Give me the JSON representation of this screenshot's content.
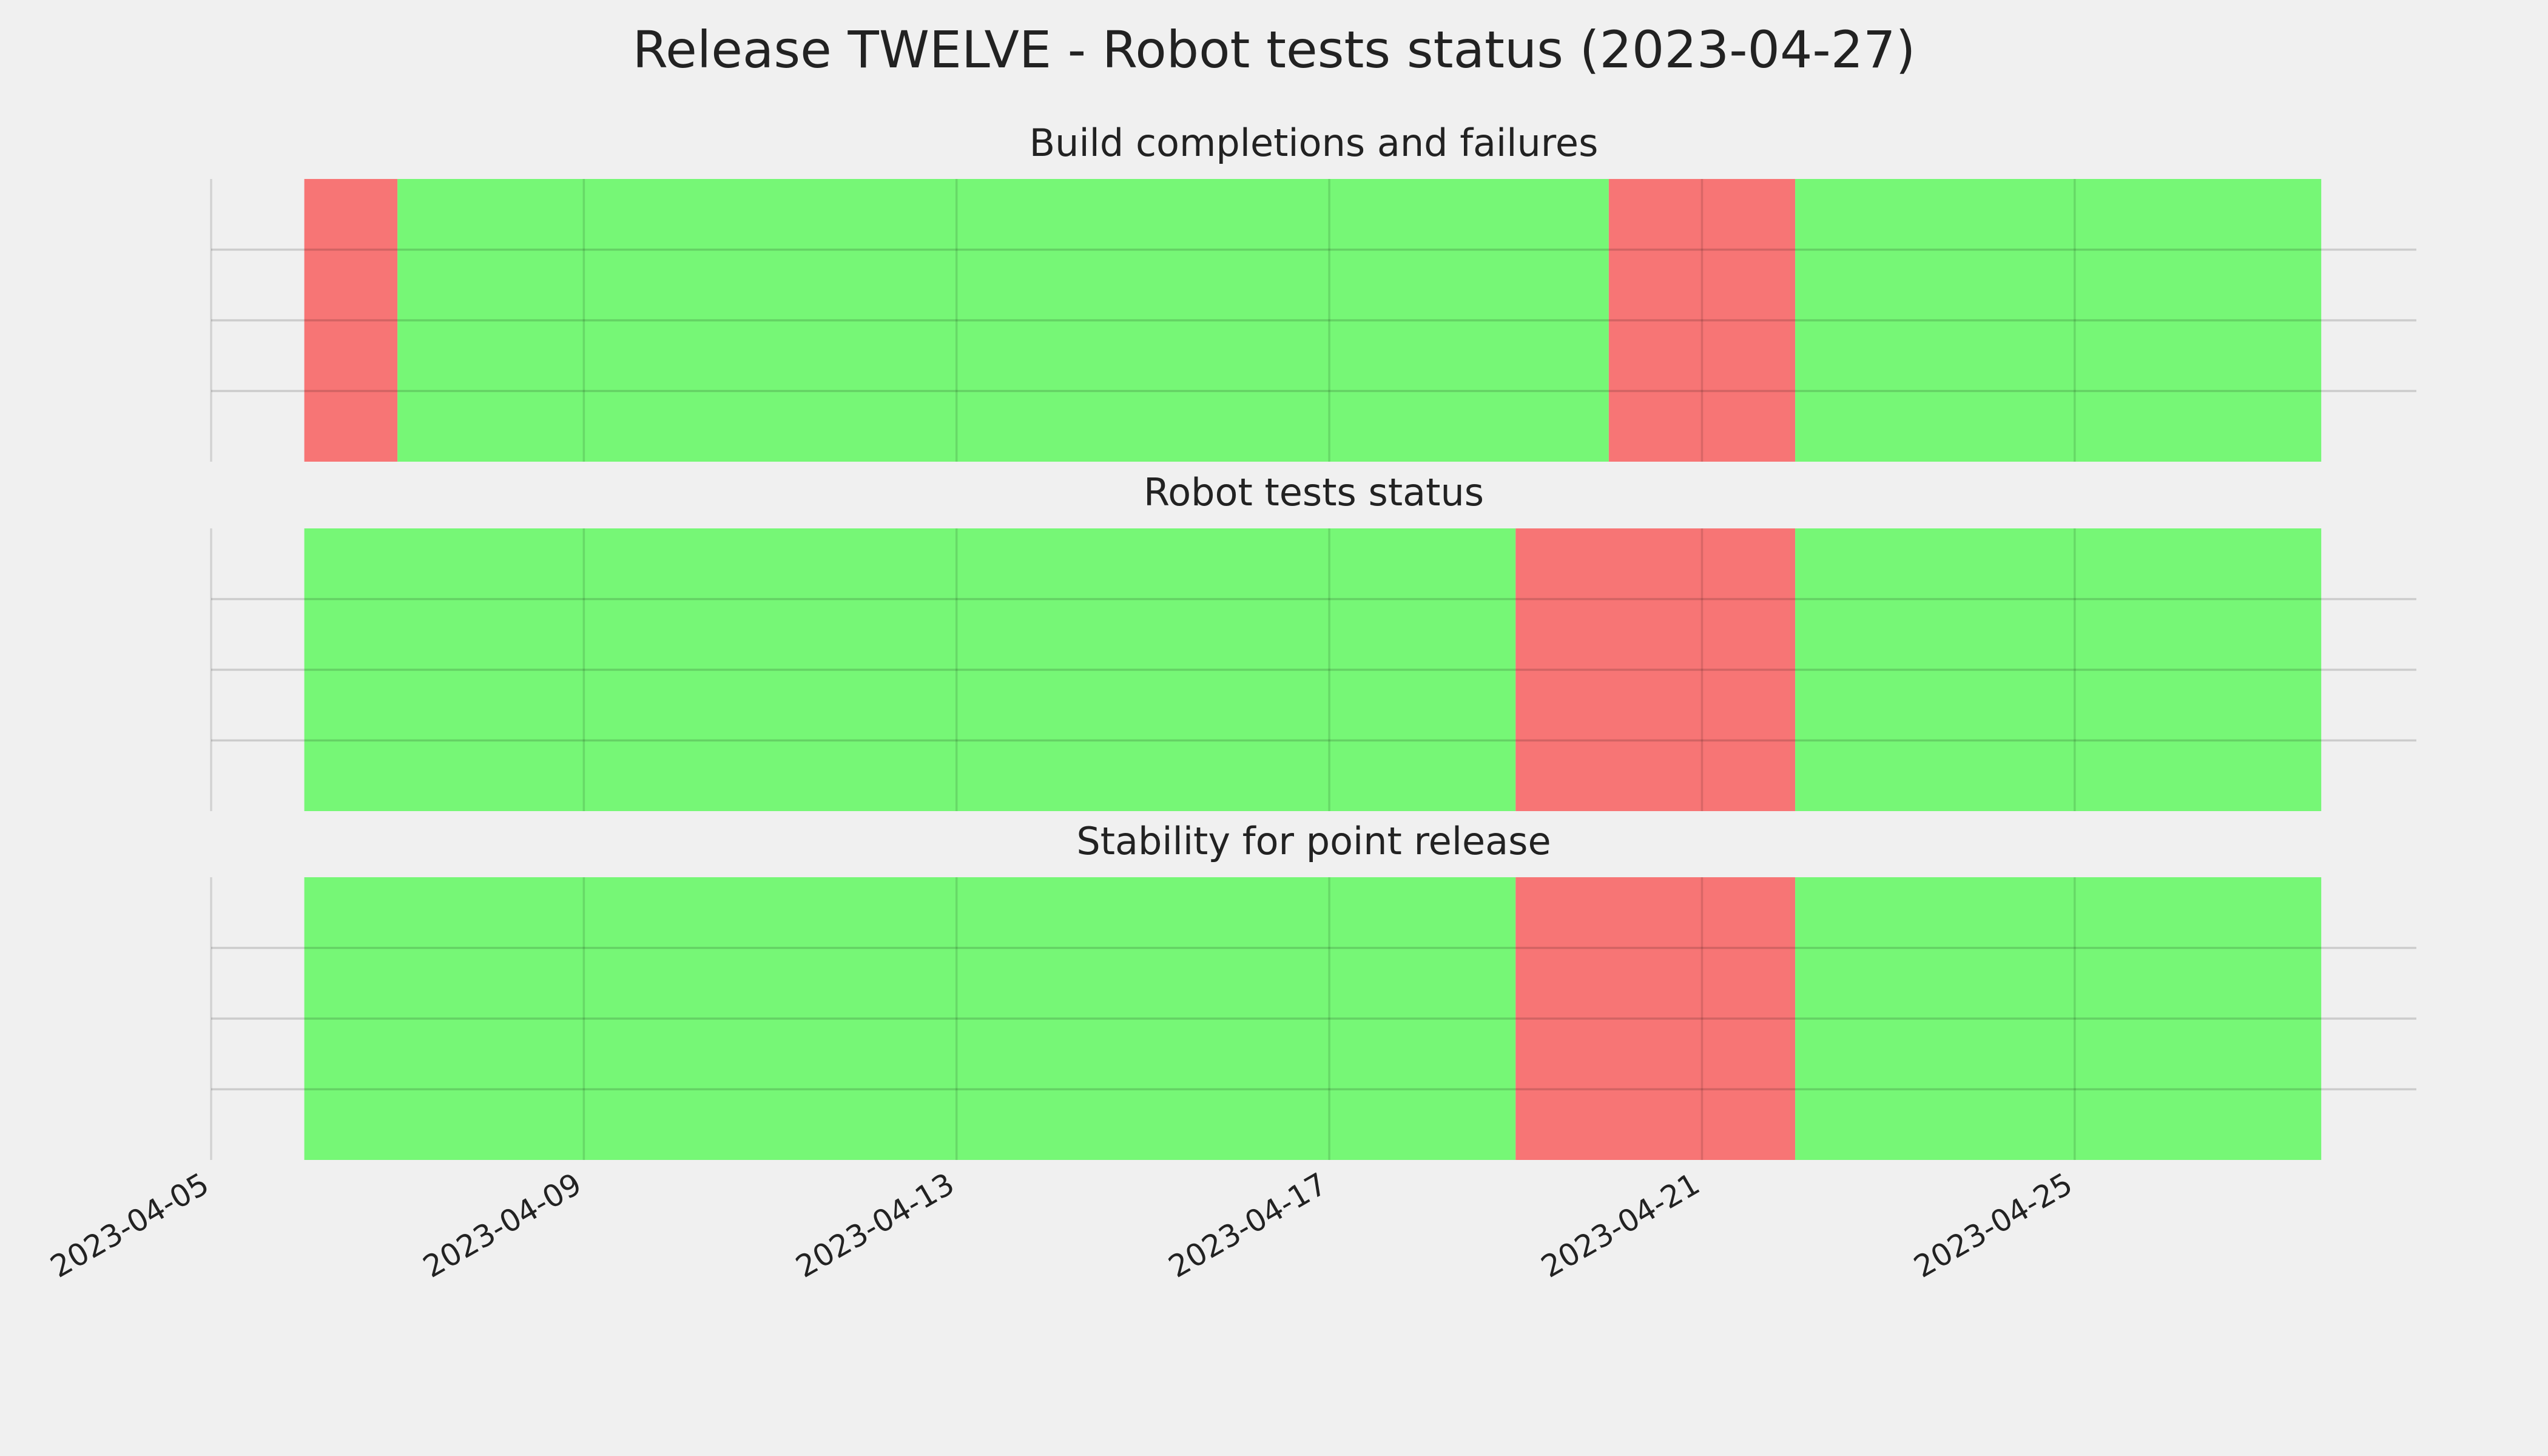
{
  "title": "Release TWELVE - Robot tests status (2023-04-27)",
  "chart_data": [
    {
      "type": "timeline",
      "title": "Build completions and failures",
      "spans": [
        {
          "start": "2023-04-06",
          "end": "2023-04-07",
          "color": "#f77575"
        },
        {
          "start": "2023-04-07",
          "end": "2023-04-20",
          "color": "#76f776"
        },
        {
          "start": "2023-04-20",
          "end": "2023-04-22",
          "color": "#f77575"
        },
        {
          "start": "2023-04-22",
          "end": "2023-04-27T15:30",
          "color": "#76f776"
        }
      ],
      "xlim": [
        "2023-04-05",
        "2023-04-28T16:00"
      ],
      "xticks": [
        "2023-04-05",
        "2023-04-09",
        "2023-04-13",
        "2023-04-17",
        "2023-04-21",
        "2023-04-25"
      ],
      "ylim": [
        0,
        1
      ],
      "yticks": [
        0.25,
        0.5,
        0.75
      ],
      "grid": true
    },
    {
      "type": "timeline",
      "title": "Robot tests status",
      "spans": [
        {
          "start": "2023-04-06",
          "end": "2023-04-19",
          "color": "#76f776"
        },
        {
          "start": "2023-04-19",
          "end": "2023-04-22",
          "color": "#f77575"
        },
        {
          "start": "2023-04-22",
          "end": "2023-04-27T15:30",
          "color": "#76f776"
        }
      ],
      "xlim": [
        "2023-04-05",
        "2023-04-28T16:00"
      ],
      "xticks": [
        "2023-04-05",
        "2023-04-09",
        "2023-04-13",
        "2023-04-17",
        "2023-04-21",
        "2023-04-25"
      ],
      "ylim": [
        0,
        1
      ],
      "yticks": [
        0.25,
        0.5,
        0.75
      ],
      "grid": true
    },
    {
      "type": "timeline",
      "title": "Stability for point release",
      "spans": [
        {
          "start": "2023-04-06",
          "end": "2023-04-19",
          "color": "#76f776"
        },
        {
          "start": "2023-04-19",
          "end": "2023-04-22",
          "color": "#f77575"
        },
        {
          "start": "2023-04-22",
          "end": "2023-04-27T15:30",
          "color": "#76f776"
        }
      ],
      "xlim": [
        "2023-04-05",
        "2023-04-28T16:00"
      ],
      "xticks": [
        "2023-04-05",
        "2023-04-09",
        "2023-04-13",
        "2023-04-17",
        "2023-04-21",
        "2023-04-25"
      ],
      "ylim": [
        0,
        1
      ],
      "yticks": [
        0.25,
        0.5,
        0.75
      ],
      "grid": true,
      "show_xtick_labels": true
    }
  ]
}
